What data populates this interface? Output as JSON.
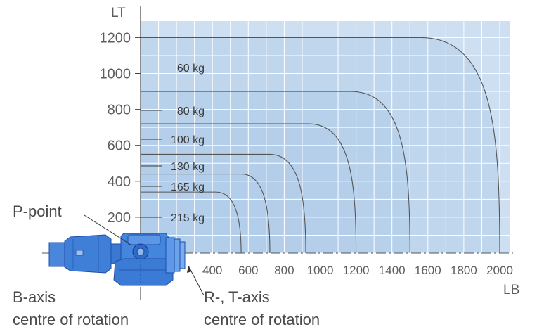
{
  "axes": {
    "y_title": "LT",
    "x_title": "LB",
    "y_ticks": [
      "1200",
      "1000",
      "800",
      "600",
      "400",
      "200"
    ],
    "x_ticks": [
      "400",
      "600",
      "800",
      "1000",
      "1200",
      "1400",
      "1600",
      "1800",
      "2000"
    ]
  },
  "loads": [
    {
      "label": "60 kg",
      "reach": 2000,
      "height": 1200
    },
    {
      "label": "80 kg",
      "reach": 1500,
      "height": 900
    },
    {
      "label": "100 kg",
      "reach": 1200,
      "height": 720
    },
    {
      "label": "130 kg",
      "reach": 920,
      "height": 550
    },
    {
      "label": "165 kg",
      "reach": 720,
      "height": 440
    },
    {
      "label": "215 kg",
      "reach": 560,
      "height": 340
    }
  ],
  "callouts": {
    "p_point": "P-point",
    "b_axis_1": "B-axis",
    "b_axis_2": "centre of rotation",
    "rt_axis_1": "R-, T-axis",
    "rt_axis_2": "centre of rotation"
  },
  "colors": {
    "grid_background": "#cfdff2",
    "envelope_fill": "#b3cdea",
    "wrist_body": "#3f7fd8",
    "wrist_outline": "#1e4fa8"
  }
}
